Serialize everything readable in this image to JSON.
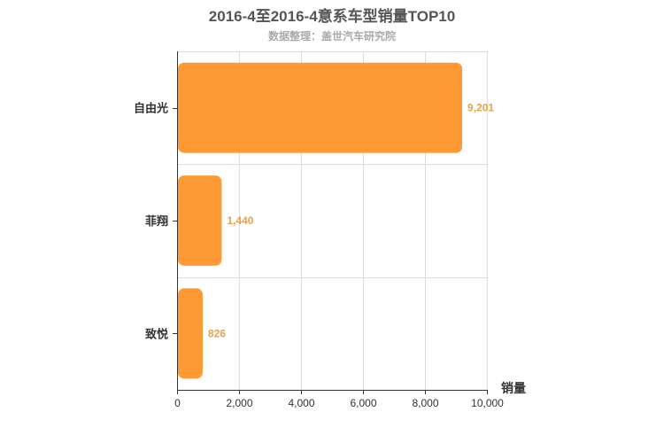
{
  "chart_data": {
    "type": "bar",
    "orientation": "horizontal",
    "title": "2016-4至2016-4意系车型销量TOP10",
    "subtitle": "数据整理：盖世汽车研究院",
    "categories": [
      "自由光",
      "菲翔",
      "致悦"
    ],
    "values": [
      9201,
      1440,
      826
    ],
    "value_labels": [
      "9,201",
      "1,440",
      "826"
    ],
    "xlabel": "销量",
    "ylabel": "",
    "xlim": [
      0,
      10000
    ],
    "x_ticks": [
      0,
      2000,
      4000,
      6000,
      8000,
      10000
    ],
    "x_tick_labels": [
      "0",
      "2,000",
      "4,000",
      "6,000",
      "8,000",
      "10,000"
    ],
    "grid": true,
    "legend": "none",
    "colors": {
      "bar": "#ff9933",
      "value_label": "#e8a04a",
      "title": "#555555",
      "subtitle": "#aaaaaa",
      "axis": "#333333",
      "grid": "#dddddd",
      "text": "#333333"
    }
  }
}
